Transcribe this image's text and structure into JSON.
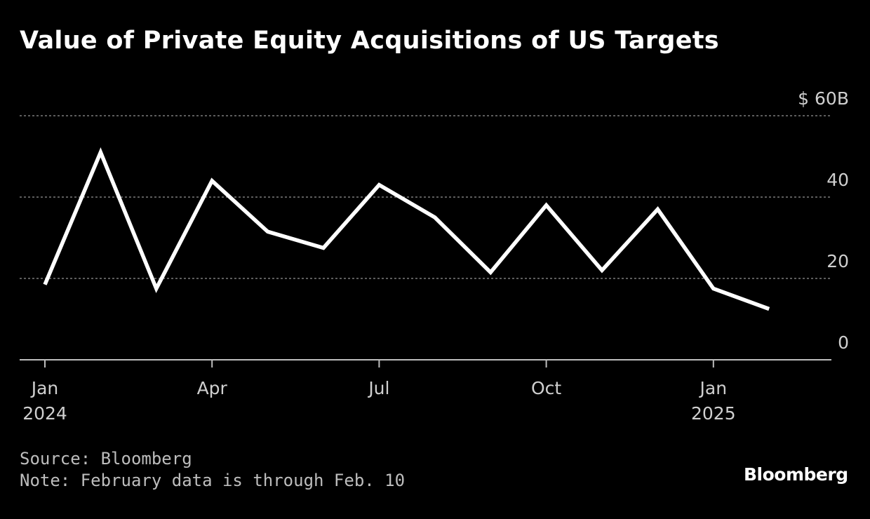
{
  "chart_data": {
    "type": "line",
    "title": "Value of Private Equity Acquisitions of US Targets",
    "series": [
      {
        "x": [
          "2024-01",
          "2024-02",
          "2024-03",
          "2024-04",
          "2024-05",
          "2024-06",
          "2024-07",
          "2024-08",
          "2024-09",
          "2024-10",
          "2024-11",
          "2024-12",
          "2025-01",
          "2025-02"
        ],
        "values": [
          18.5,
          51,
          17.5,
          44,
          31.5,
          27.5,
          43,
          35,
          21.5,
          38,
          22,
          37,
          17.5,
          12.5
        ]
      }
    ],
    "y_ticks": [
      {
        "value": 60,
        "label": "$ 60B"
      },
      {
        "value": 40,
        "label": "40"
      },
      {
        "value": 20,
        "label": "20"
      },
      {
        "value": 0,
        "label": "0"
      }
    ],
    "x_ticks": [
      {
        "x": "2024-01",
        "label": "Jan",
        "sublabel": "2024"
      },
      {
        "x": "2024-04",
        "label": "Apr",
        "sublabel": ""
      },
      {
        "x": "2024-07",
        "label": "Jul",
        "sublabel": ""
      },
      {
        "x": "2024-10",
        "label": "Oct",
        "sublabel": ""
      },
      {
        "x": "2025-01",
        "label": "Jan",
        "sublabel": "2025"
      }
    ],
    "ylim": [
      0,
      60
    ],
    "grid": true,
    "line_color": "#ffffff",
    "grid_color": "#7a7a7a",
    "background": "#000000"
  },
  "footer": {
    "source": "Source: Bloomberg",
    "note": "Note: February data is through Feb. 10"
  },
  "logo": "Bloomberg"
}
